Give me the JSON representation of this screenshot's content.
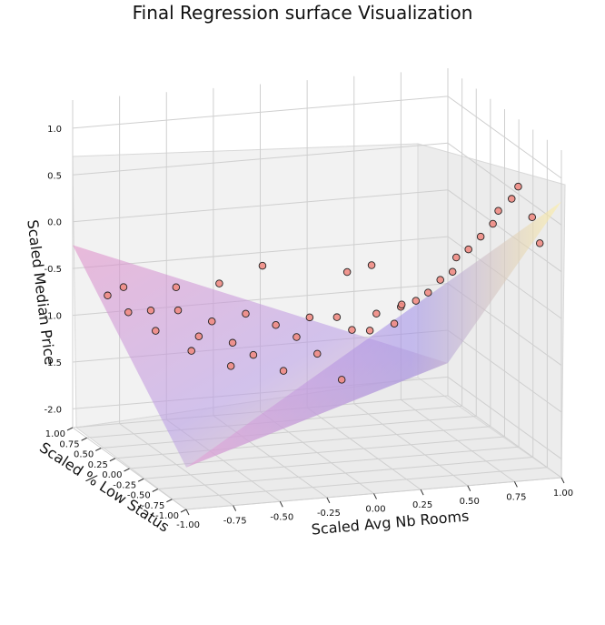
{
  "chart_data": {
    "type": "scatter",
    "title": "Final Regression surface Visualization",
    "xlabel": "Scaled Avg Nb Rooms",
    "ylabel": "Scaled % Low Status",
    "zlabel": "Scaled Median Price",
    "x_ticks": [
      "-1.00",
      "-0.75",
      "-0.50",
      "-0.25",
      "0.00",
      "0.25",
      "0.50",
      "0.75",
      "1.00"
    ],
    "y_ticks": [
      "-1.00",
      "-0.75",
      "-0.50",
      "-0.25",
      "0.00",
      "0.25",
      "0.50",
      "0.75",
      "1.00"
    ],
    "z_ticks": [
      "-2.0",
      "-1.5",
      "-1.0",
      "-0.5",
      "0.0",
      "0.5",
      "1.0"
    ],
    "xlim": [
      -1,
      1
    ],
    "ylim": [
      -1,
      1
    ],
    "zlim": [
      -2.2,
      1.3
    ],
    "grid": true,
    "point_color": "#f08c84",
    "point_edge": "#222222",
    "surface_colors": [
      "#8f7fe6",
      "#d98ac8",
      "#f5b7cf",
      "#fff3ad"
    ],
    "surface": {
      "description_free": true,
      "corners": [
        {
          "x": -1.0,
          "y": 1.0,
          "z": -0.25
        },
        {
          "x": -1.0,
          "y": -1.0,
          "z": -1.75
        },
        {
          "x": 1.0,
          "y": 1.0,
          "z": -1.85
        },
        {
          "x": 1.0,
          "y": -1.0,
          "z": 0.75
        }
      ]
    },
    "series": [
      {
        "points": [
          [
            -0.95,
            0.55,
            -0.6
          ],
          [
            -0.9,
            0.35,
            -0.7
          ],
          [
            -0.85,
            0.6,
            -0.55
          ],
          [
            -0.8,
            0.2,
            -0.85
          ],
          [
            -0.75,
            0.45,
            -0.75
          ],
          [
            -0.7,
            -0.1,
            -0.95
          ],
          [
            -0.65,
            0.3,
            -0.7
          ],
          [
            -0.6,
            0.1,
            -0.9
          ],
          [
            -0.55,
            -0.3,
            -1.05
          ],
          [
            -0.5,
            0.2,
            -0.8
          ],
          [
            -0.45,
            0.0,
            -0.95
          ],
          [
            -0.4,
            -0.2,
            -1.0
          ],
          [
            -0.35,
            0.1,
            -0.7
          ],
          [
            -0.3,
            -0.4,
            -1.1
          ],
          [
            -0.25,
            -0.1,
            -0.75
          ],
          [
            -0.2,
            -0.3,
            -0.8
          ],
          [
            -0.15,
            -0.5,
            -0.9
          ],
          [
            -0.1,
            -0.2,
            -0.65
          ],
          [
            -0.05,
            -0.6,
            -1.15
          ],
          [
            0.0,
            -0.35,
            -0.6
          ],
          [
            0.05,
            -0.45,
            -0.7
          ],
          [
            0.1,
            -0.6,
            -0.65
          ],
          [
            0.15,
            -0.55,
            -0.5
          ],
          [
            0.2,
            -0.7,
            -0.55
          ],
          [
            0.25,
            -0.65,
            -0.4
          ],
          [
            0.3,
            -0.75,
            -0.3
          ],
          [
            0.35,
            -0.8,
            -0.2
          ],
          [
            0.4,
            -0.85,
            -0.05
          ],
          [
            0.45,
            -0.9,
            0.05
          ],
          [
            0.5,
            -0.8,
            0.15
          ],
          [
            0.55,
            -0.85,
            0.25
          ],
          [
            0.6,
            -0.9,
            0.4
          ],
          [
            0.65,
            -0.95,
            0.55
          ],
          [
            0.7,
            -0.88,
            0.65
          ],
          [
            0.75,
            -0.95,
            0.8
          ],
          [
            0.8,
            -0.9,
            0.9
          ],
          [
            0.85,
            -0.98,
            0.6
          ],
          [
            0.9,
            -0.95,
            0.3
          ],
          [
            -0.6,
            0.5,
            -0.55
          ],
          [
            -0.2,
            0.3,
            -0.3
          ],
          [
            0.1,
            -0.2,
            -0.2
          ],
          [
            -0.4,
            0.4,
            -0.5
          ],
          [
            0.3,
            -0.5,
            -0.45
          ],
          [
            0.2,
            -0.3,
            -0.1
          ]
        ]
      }
    ]
  }
}
